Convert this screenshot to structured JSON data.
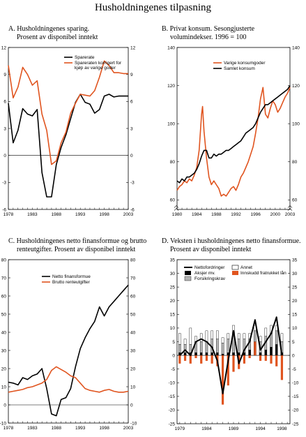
{
  "title": "Husholdningenes tilpasning",
  "colors": {
    "orange": "#e0541f",
    "black": "#000000",
    "grey": "#b4b4b4",
    "white": "#ffffff"
  },
  "chart_data": [
    {
      "id": "A",
      "type": "line",
      "title_lines": [
        "A.  Husholdningenes sparing.",
        "Prosent av disponibel inntekt"
      ],
      "ylim": [
        -6,
        12
      ],
      "xlim": [
        1978,
        2003
      ],
      "yticks_left": [
        -6,
        -3,
        0,
        3,
        6,
        9,
        12
      ],
      "yticks_right": [
        -6,
        -3,
        0,
        3,
        6,
        9,
        12
      ],
      "xticks": [
        1978,
        1983,
        1988,
        1993,
        1998,
        2003
      ],
      "legend": "top-right",
      "series": [
        {
          "name": "Sparerate",
          "color": "#000000",
          "x": [
            1978,
            1979,
            1980,
            1981,
            1982,
            1983,
            1984,
            1985,
            1986,
            1987,
            1988,
            1989,
            1990,
            1991,
            1992,
            1993,
            1994,
            1995,
            1996,
            1997,
            1998,
            1999,
            2000,
            2001,
            2002,
            2003
          ],
          "values": [
            5.8,
            1.4,
            2.8,
            5.2,
            4.6,
            4.4,
            5.1,
            -1.9,
            -4.6,
            -4.6,
            -1.0,
            0.9,
            2.3,
            4.1,
            5.9,
            6.8,
            5.9,
            5.7,
            4.7,
            5.1,
            6.6,
            6.8,
            6.5,
            6.6,
            6.6,
            6.6
          ]
        },
        {
          "name": "Spareraten korrigert for kjøp av varige goder",
          "color": "#e0541f",
          "x": [
            1978,
            1979,
            1980,
            1981,
            1982,
            1983,
            1984,
            1985,
            1986,
            1987,
            1988,
            1989,
            1990,
            1991,
            1992,
            1993,
            1994,
            1995,
            1996,
            1997,
            1998,
            1999,
            2000,
            2001,
            2002,
            2003
          ],
          "values": [
            10.0,
            6.4,
            7.6,
            9.8,
            9.0,
            7.8,
            8.3,
            4.6,
            2.8,
            -1.0,
            -0.6,
            1.4,
            2.6,
            4.7,
            5.8,
            6.8,
            6.7,
            6.6,
            7.2,
            8.7,
            10.5,
            10.0,
            9.2,
            9.2,
            9.1,
            9.1
          ]
        }
      ]
    },
    {
      "id": "B",
      "type": "line",
      "title_lines": [
        "B.  Privat konsum. Sesongjusterte",
        "volumindekser. 1996 = 100"
      ],
      "ylim": [
        55,
        140
      ],
      "xlim": [
        1980,
        2003
      ],
      "yticks_left": [
        60,
        80,
        100,
        120,
        140
      ],
      "yticks_right": [
        60,
        80,
        100,
        120,
        140
      ],
      "xticks": [
        1980,
        1984,
        1988,
        1992,
        1996,
        2000,
        2003
      ],
      "legend": "top-right",
      "series": [
        {
          "name": "Varige konsumgoder",
          "color": "#e0541f",
          "x": [
            1980,
            1980.5,
            1981,
            1981.5,
            1982,
            1982.5,
            1983,
            1983.5,
            1984,
            1984.5,
            1985,
            1985.2,
            1985.5,
            1986,
            1986.5,
            1987,
            1987.5,
            1988,
            1988.5,
            1989,
            1989.5,
            1990,
            1990.5,
            1991,
            1991.5,
            1992,
            1992.5,
            1993,
            1993.5,
            1994,
            1994.5,
            1995,
            1995.5,
            1996,
            1996.5,
            1997,
            1997.5,
            1998,
            1998.5,
            1999,
            1999.5,
            2000,
            2000.5,
            2001,
            2001.5,
            2002,
            2002.5,
            2003
          ],
          "values": [
            65,
            67,
            68,
            70,
            69,
            71,
            70,
            73,
            77,
            86,
            105,
            109,
            96,
            82,
            72,
            68,
            70,
            68,
            66,
            62,
            63,
            62,
            64,
            66,
            67,
            65,
            68,
            72,
            74,
            77,
            80,
            84,
            88,
            95,
            103,
            113,
            119,
            105,
            103,
            108,
            112,
            110,
            106,
            108,
            111,
            114,
            116,
            119
          ]
        },
        {
          "name": "Samlet konsum",
          "color": "#000000",
          "x": [
            1980,
            1980.5,
            1981,
            1981.5,
            1982,
            1982.5,
            1983,
            1983.5,
            1984,
            1984.5,
            1985,
            1985.5,
            1986,
            1986.5,
            1987,
            1987.5,
            1988,
            1988.5,
            1989,
            1989.5,
            1990,
            1990.5,
            1991,
            1991.5,
            1992,
            1992.5,
            1993,
            1993.5,
            1994,
            1994.5,
            1995,
            1995.5,
            1996,
            1996.5,
            1997,
            1997.5,
            1998,
            1998.5,
            1999,
            1999.5,
            2000,
            2000.5,
            2001,
            2001.5,
            2002,
            2002.5,
            2003
          ],
          "values": [
            70,
            69,
            71,
            70,
            72,
            72,
            73,
            74,
            76,
            79,
            83,
            86,
            86,
            82,
            82,
            84,
            83,
            84,
            84,
            85,
            86,
            86,
            87,
            88,
            89,
            90,
            91,
            93,
            95,
            96,
            97,
            98,
            100,
            103,
            106,
            108,
            110,
            110,
            111,
            112,
            113,
            114,
            115,
            116,
            117,
            118,
            120
          ]
        }
      ]
    },
    {
      "id": "C",
      "type": "line",
      "title_lines": [
        "C.  Husholdningenes netto finansformue og brutto",
        "renteutgifter. Prosent av disponibel inntekt"
      ],
      "ylim": [
        -10,
        80
      ],
      "xlim": [
        1978,
        2003
      ],
      "yticks_left": [
        -10,
        0,
        10,
        20,
        30,
        40,
        50,
        60,
        70,
        80
      ],
      "yticks_right": [
        -10,
        0,
        10,
        20,
        30,
        40,
        50,
        60,
        70,
        80
      ],
      "xticks": [
        1978,
        1983,
        1988,
        1993,
        1998,
        2003
      ],
      "legend": "top-center",
      "series": [
        {
          "name": "Netto finansformue",
          "color": "#000000",
          "x": [
            1978,
            1979,
            1980,
            1981,
            1982,
            1983,
            1984,
            1985,
            1986,
            1987,
            1988,
            1989,
            1990,
            1991,
            1992,
            1993,
            1994,
            1995,
            1996,
            1997,
            1998,
            1999,
            2000,
            2001,
            2002,
            2003
          ],
          "values": [
            12.5,
            12,
            11,
            15,
            14,
            16,
            17,
            20,
            9,
            -5,
            -6,
            3,
            4,
            9,
            21,
            31,
            37,
            42,
            46,
            54,
            49,
            54,
            57,
            60,
            63,
            66
          ]
        },
        {
          "name": "Brutto renteutgifter",
          "color": "#e0541f",
          "x": [
            1978,
            1979,
            1980,
            1981,
            1982,
            1983,
            1984,
            1985,
            1986,
            1987,
            1988,
            1989,
            1990,
            1991,
            1992,
            1993,
            1994,
            1995,
            1996,
            1997,
            1998,
            1999,
            2000,
            2001,
            2002,
            2003
          ],
          "values": [
            7,
            7.5,
            8,
            8.5,
            9.5,
            10,
            11,
            12,
            14,
            19,
            21,
            19.5,
            18,
            16,
            15,
            12,
            9,
            8,
            7.5,
            7,
            8,
            8.5,
            7.5,
            7,
            7,
            7.5
          ]
        }
      ]
    },
    {
      "id": "D",
      "type": "bar",
      "title_lines": [
        "D.  Veksten i husholdningenes netto finansformue.",
        "Prosent av disponibel inntekt"
      ],
      "ylim": [
        -25,
        35
      ],
      "xlim": [
        1978.5,
        1999.5
      ],
      "yticks_left": [
        -25,
        -20,
        -15,
        -10,
        -5,
        0,
        5,
        10,
        15,
        20,
        25,
        30,
        35
      ],
      "yticks_right": [
        -25,
        -20,
        -15,
        -10,
        -5,
        0,
        5,
        10,
        15,
        20,
        25,
        30,
        35
      ],
      "xticks": [
        1979,
        1984,
        1989,
        1994,
        1998
      ],
      "legend": "top",
      "legend_items": [
        "Nettofordringer",
        "Annet",
        "Aksjer mv.",
        "Innskudd fratrukket lån",
        "Forsikringskrav"
      ],
      "x": [
        1979,
        1980,
        1981,
        1982,
        1983,
        1984,
        1985,
        1986,
        1987,
        1988,
        1989,
        1990,
        1991,
        1992,
        1993,
        1994,
        1995,
        1996,
        1997,
        1998
      ],
      "net": [
        0,
        2,
        0,
        5,
        6,
        5,
        3,
        -2,
        -14,
        -2,
        9,
        -3,
        2,
        5,
        13,
        2,
        5,
        8,
        14,
        0
      ],
      "annet": [
        4,
        2,
        6,
        2,
        3,
        4,
        3,
        3,
        2,
        2,
        4,
        2,
        2,
        2,
        2,
        2,
        3,
        3,
        2,
        3
      ],
      "aksjer": [
        1,
        1,
        1,
        1,
        1,
        1,
        1,
        1,
        0.5,
        1,
        1,
        1,
        1,
        2,
        5,
        1,
        2,
        3,
        4,
        1
      ],
      "forsikring": [
        3,
        3,
        3,
        4,
        4,
        4,
        5,
        5,
        4,
        5,
        6,
        5,
        5,
        4,
        4,
        4,
        5,
        5,
        5,
        4
      ],
      "innskudd": [
        -3,
        -2,
        -3,
        -1,
        -3,
        -2,
        -3,
        -4,
        -18,
        -11,
        -6,
        -5,
        -3,
        -1,
        5,
        -2,
        -2,
        -3,
        -4,
        -9
      ]
    }
  ]
}
